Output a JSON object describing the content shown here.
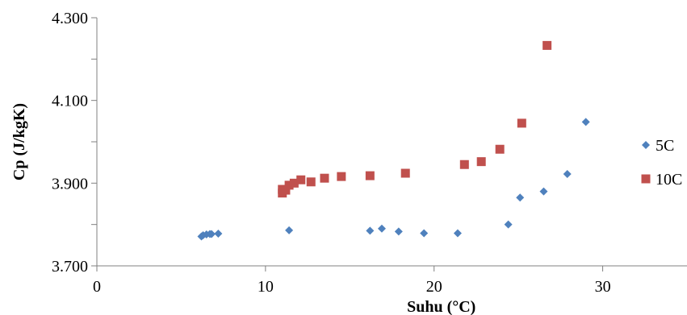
{
  "chart_data": {
    "type": "scatter",
    "title": "",
    "xlabel": "Suhu (°C)",
    "ylabel": "Cp (J/kgK)",
    "xlim": [
      0,
      35
    ],
    "ylim": [
      3.7,
      4.3
    ],
    "x_ticks": [
      0,
      10,
      20,
      30
    ],
    "x_tick_labels": [
      "0",
      "10",
      "20",
      "30"
    ],
    "y_ticks": [
      3.7,
      3.9,
      4.1,
      4.3
    ],
    "y_tick_labels": [
      "3.700",
      "3.900",
      "4.100",
      "4.300"
    ],
    "grid": false,
    "legend_position": "right",
    "series": [
      {
        "name": "5C",
        "color": "#4F81BD",
        "marker": "diamond",
        "points": [
          [
            6.2,
            3.771
          ],
          [
            6.3,
            3.774
          ],
          [
            6.5,
            3.776
          ],
          [
            6.7,
            3.777
          ],
          [
            6.8,
            3.777
          ],
          [
            7.2,
            3.778
          ],
          [
            11.4,
            3.786
          ],
          [
            16.2,
            3.785
          ],
          [
            16.9,
            3.79
          ],
          [
            17.9,
            3.783
          ],
          [
            19.4,
            3.779
          ],
          [
            21.4,
            3.779
          ],
          [
            24.4,
            3.8
          ],
          [
            25.1,
            3.865
          ],
          [
            26.5,
            3.88
          ],
          [
            27.9,
            3.922
          ],
          [
            29.0,
            4.048
          ]
        ]
      },
      {
        "name": "10C",
        "color": "#C0504D",
        "marker": "square",
        "points": [
          [
            11.0,
            3.876
          ],
          [
            11.0,
            3.885
          ],
          [
            11.2,
            3.883
          ],
          [
            11.4,
            3.895
          ],
          [
            11.7,
            3.9
          ],
          [
            12.1,
            3.908
          ],
          [
            12.7,
            3.903
          ],
          [
            13.5,
            3.912
          ],
          [
            14.5,
            3.916
          ],
          [
            16.2,
            3.918
          ],
          [
            18.3,
            3.924
          ],
          [
            21.8,
            3.945
          ],
          [
            22.8,
            3.952
          ],
          [
            23.9,
            3.982
          ],
          [
            25.2,
            4.045
          ],
          [
            26.7,
            4.233
          ]
        ]
      }
    ]
  }
}
